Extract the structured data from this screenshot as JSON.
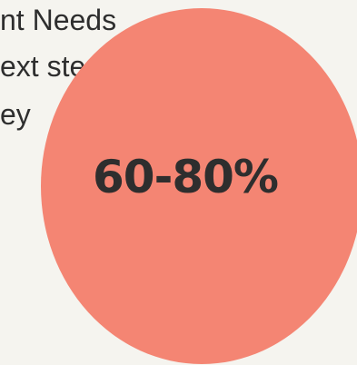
{
  "background_text": {
    "line1": "nt Needs",
    "line2": "ext steps",
    "line3": "ey"
  },
  "highlight": {
    "value": "60-80%",
    "circle_color": "#f48573"
  },
  "colors": {
    "background": "#f5f4ef",
    "text": "#2e2e2e"
  }
}
